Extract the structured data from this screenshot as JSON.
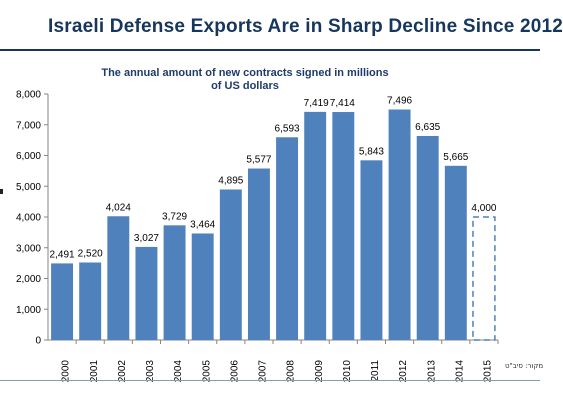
{
  "slide": {
    "title": "Israeli Defense Exports Are in Sharp Decline Since 2012",
    "source_note": "מקור: סיב\"ט"
  },
  "chart_data": {
    "type": "bar",
    "title": "The annual amount of new contracts signed in millions of US dollars",
    "title_lines": [
      "The annual amount of new contracts signed in millions",
      "of US dollars"
    ],
    "categories": [
      "2000",
      "2001",
      "2002",
      "2003",
      "2004",
      "2005",
      "2006",
      "2007",
      "2008",
      "2009",
      "2010",
      "2011",
      "2012",
      "2013",
      "2014",
      "2015"
    ],
    "values": [
      2491,
      2520,
      4024,
      3027,
      3729,
      3464,
      4895,
      5577,
      6593,
      7419,
      7414,
      5843,
      7496,
      6635,
      5665,
      4000
    ],
    "value_labels": [
      "2,491",
      "2,520",
      "4,024",
      "3,027",
      "3,729",
      "3,464",
      "4,895",
      "5,577",
      "6,593",
      "7,419",
      "7,414",
      "5,843",
      "7,496",
      "6,635",
      "5,665",
      "4,000"
    ],
    "projected": [
      false,
      false,
      false,
      false,
      false,
      false,
      false,
      false,
      false,
      false,
      false,
      false,
      false,
      false,
      false,
      true
    ],
    "ylim": [
      0,
      8000
    ],
    "yticks": [
      0,
      1000,
      2000,
      3000,
      4000,
      5000,
      6000,
      7000,
      8000
    ],
    "ytick_labels": [
      "0",
      "1,000",
      "2,000",
      "3,000",
      "4,000",
      "5,000",
      "6,000",
      "7,000",
      "8,000"
    ],
    "bar_color": "#4F81BD",
    "grid": false,
    "xlabel": "",
    "ylabel": ""
  }
}
